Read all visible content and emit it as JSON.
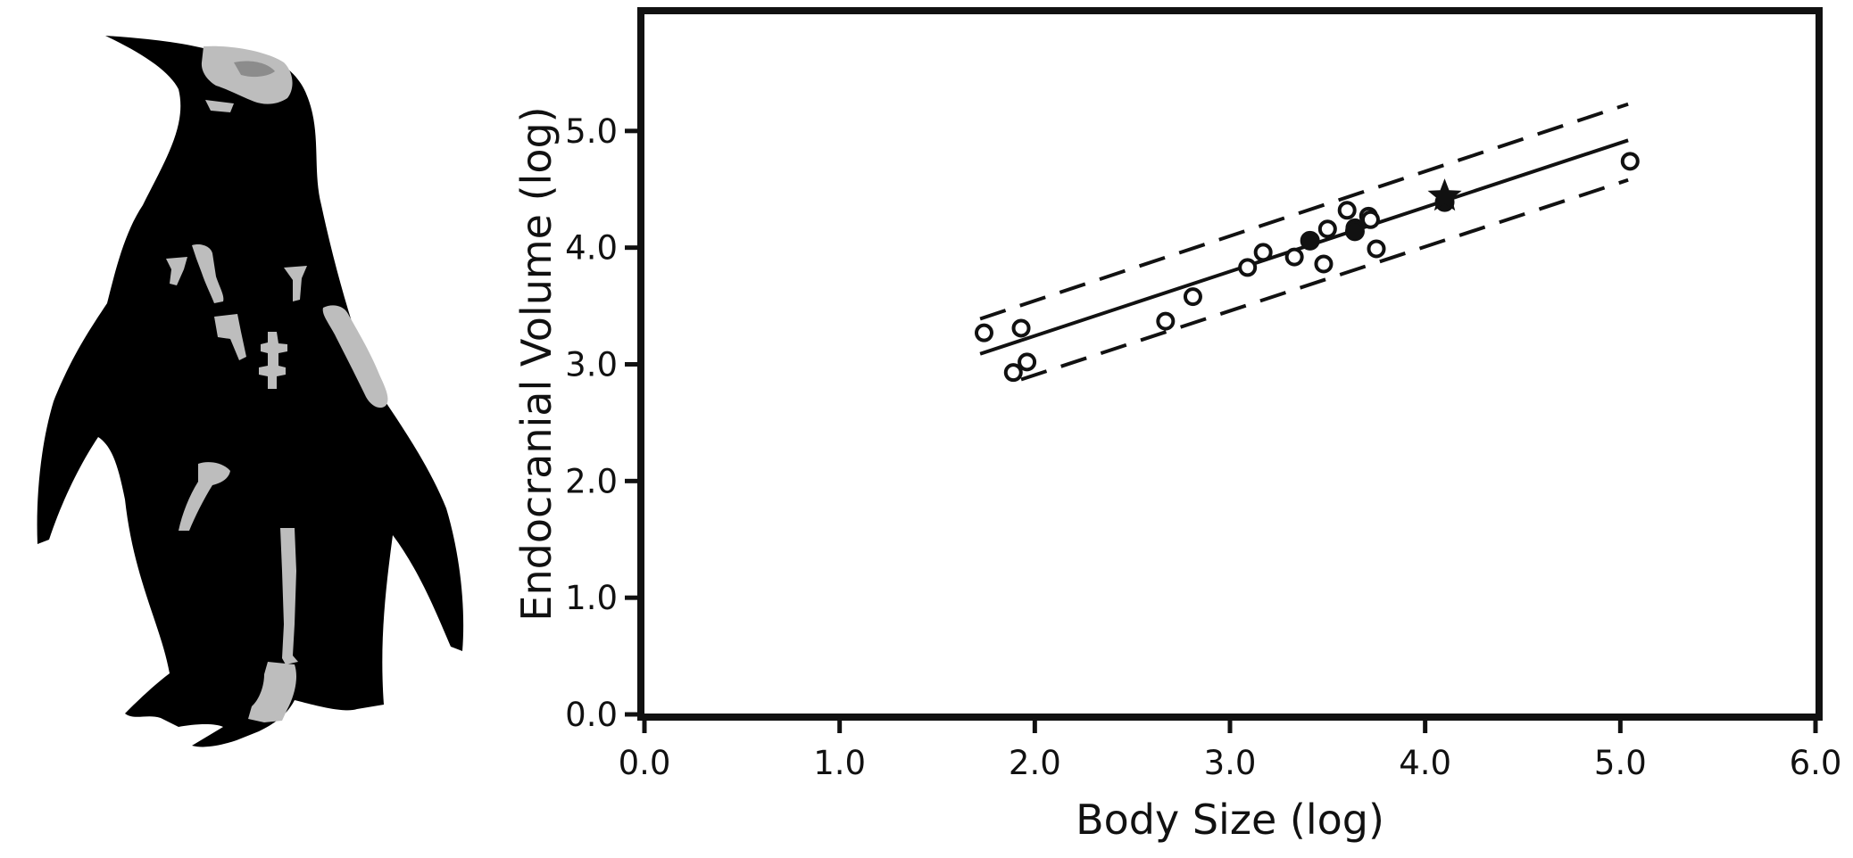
{
  "colors": {
    "silhouette": "#000000",
    "bone": "#bdbdbd",
    "bone_shadow": "#8c8c8c",
    "ink": "#111111",
    "background": "#ffffff"
  },
  "illustration": {
    "name": "penguin-silhouette-with-fossil-bones"
  },
  "chart_data": {
    "type": "scatter",
    "title": "",
    "xlabel": "Body Size (log)",
    "ylabel": "Endocranial Volume (log)",
    "xlim": [
      0,
      6
    ],
    "ylim": [
      0,
      6
    ],
    "x_ticks": [
      0,
      1,
      2,
      3,
      4,
      5,
      6
    ],
    "x_tick_labels": [
      "0.0",
      "1.0",
      "2.0",
      "3.0",
      "4.0",
      "5.0",
      "6.0"
    ],
    "y_ticks": [
      0,
      1,
      2,
      3,
      4,
      5
    ],
    "y_tick_labels": [
      "0.0",
      "1.0",
      "2.0",
      "3.0",
      "4.0",
      "5.0"
    ],
    "grid": false,
    "legend": "none",
    "open_points": [
      {
        "x": 1.74,
        "y": 3.27
      },
      {
        "x": 1.93,
        "y": 3.31
      },
      {
        "x": 1.96,
        "y": 3.02
      },
      {
        "x": 1.89,
        "y": 2.93
      },
      {
        "x": 2.67,
        "y": 3.37
      },
      {
        "x": 2.81,
        "y": 3.58
      },
      {
        "x": 3.09,
        "y": 3.83
      },
      {
        "x": 3.17,
        "y": 3.96
      },
      {
        "x": 3.33,
        "y": 3.92
      },
      {
        "x": 3.48,
        "y": 3.86
      },
      {
        "x": 3.5,
        "y": 4.16
      },
      {
        "x": 3.6,
        "y": 4.32
      },
      {
        "x": 3.64,
        "y": 4.17
      },
      {
        "x": 3.71,
        "y": 4.27
      },
      {
        "x": 3.72,
        "y": 4.24
      },
      {
        "x": 3.75,
        "y": 3.99
      },
      {
        "x": 5.05,
        "y": 4.74
      }
    ],
    "filled_points": [
      {
        "x": 3.41,
        "y": 4.06
      },
      {
        "x": 3.64,
        "y": 4.14
      },
      {
        "x": 4.1,
        "y": 4.39
      }
    ],
    "star_points": [
      {
        "x": 4.1,
        "y": 4.44
      }
    ],
    "regression_line": {
      "x": [
        1.72,
        5.04
      ],
      "y": [
        3.09,
        4.92
      ]
    },
    "upper_interval": {
      "x": [
        1.72,
        5.04
      ],
      "y": [
        3.39,
        5.23
      ]
    },
    "lower_interval": {
      "x": [
        1.93,
        5.04
      ],
      "y": [
        2.87,
        4.58
      ]
    }
  }
}
